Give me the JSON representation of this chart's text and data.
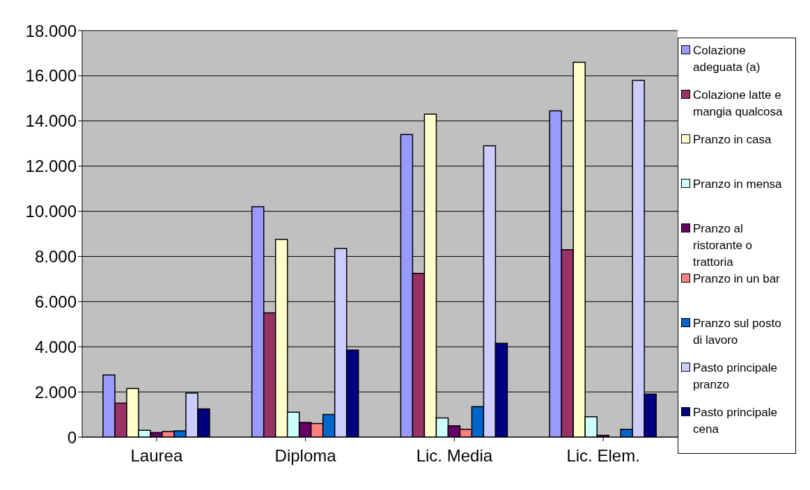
{
  "chart_data": {
    "type": "bar",
    "categories": [
      "Laurea",
      "Diploma",
      "Lic. Media",
      "Lic. Elem."
    ],
    "series": [
      {
        "name": "Colazione adeguata (a)",
        "color": "#9999ff",
        "values": [
          2750,
          10200,
          13400,
          14450
        ]
      },
      {
        "name": "Colazione latte e mangia qualcosa",
        "color": "#993366",
        "values": [
          1500,
          5500,
          7250,
          8300
        ]
      },
      {
        "name": "Pranzo in casa",
        "color": "#ffffcc",
        "values": [
          2150,
          8750,
          14300,
          16600
        ]
      },
      {
        "name": "Pranzo in mensa",
        "color": "#ccffff",
        "values": [
          300,
          1100,
          850,
          900
        ]
      },
      {
        "name": "Pranzo al ristorante o trattoria",
        "color": "#660066",
        "values": [
          200,
          650,
          500,
          80
        ]
      },
      {
        "name": "Pranzo in un bar",
        "color": "#ff8080",
        "values": [
          250,
          600,
          350,
          null
        ]
      },
      {
        "name": "Pranzo sul posto di lavoro",
        "color": "#0066cc",
        "values": [
          280,
          1000,
          1350,
          350
        ]
      },
      {
        "name": "Pasto principale pranzo",
        "color": "#ccccff",
        "values": [
          1950,
          8350,
          12900,
          15800
        ]
      },
      {
        "name": "Pasto principale cena",
        "color": "#000080",
        "values": [
          1250,
          3850,
          4150,
          1900
        ]
      }
    ],
    "ylim": [
      0,
      18000
    ],
    "yticks": [
      {
        "value": 0,
        "label": "0"
      },
      {
        "value": 2000,
        "label": "2.000"
      },
      {
        "value": 4000,
        "label": "4.000"
      },
      {
        "value": 6000,
        "label": "6.000"
      },
      {
        "value": 8000,
        "label": "8.000"
      },
      {
        "value": 10000,
        "label": "10.000"
      },
      {
        "value": 12000,
        "label": "12.000"
      },
      {
        "value": 14000,
        "label": "14.000"
      },
      {
        "value": 16000,
        "label": "16.000"
      },
      {
        "value": 18000,
        "label": "18.000"
      }
    ],
    "grid": "y",
    "legend": "right"
  }
}
